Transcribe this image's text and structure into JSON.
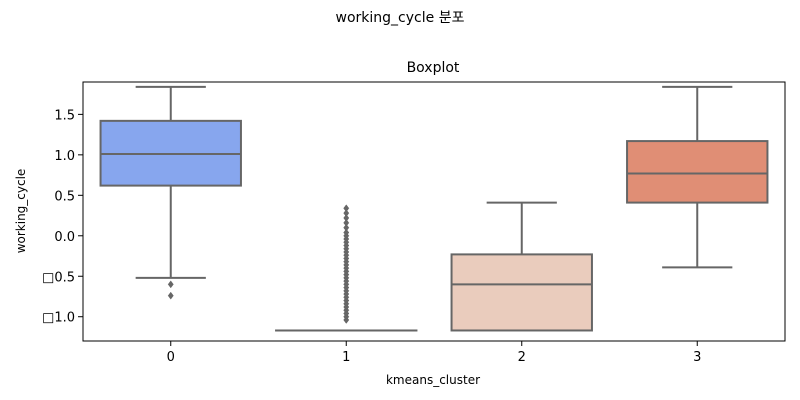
{
  "figure": {
    "suptitle": "working_cycle 분포"
  },
  "chart_data": {
    "type": "boxplot",
    "title": "Boxplot",
    "xlabel": "kmeans_cluster",
    "ylabel": "working_cycle",
    "categories": [
      "0",
      "1",
      "2",
      "3"
    ],
    "ylim": [
      -1.3,
      1.9
    ],
    "yticks": [
      {
        "value": 1.5,
        "label": "1.5"
      },
      {
        "value": 1.0,
        "label": "1.0"
      },
      {
        "value": 0.5,
        "label": "0.5"
      },
      {
        "value": 0.0,
        "label": "0.0"
      },
      {
        "value": -0.5,
        "label": "□0.5"
      },
      {
        "value": -1.0,
        "label": "□1.0"
      }
    ],
    "grid": false,
    "boxes": [
      {
        "category": "0",
        "color": "#87a6ee",
        "whisker_low": -0.52,
        "q1": 0.62,
        "median": 1.01,
        "q3": 1.42,
        "whisker_high": 1.84,
        "outliers": [
          -0.6,
          -0.74
        ]
      },
      {
        "category": "1",
        "color": "#b3cdfc",
        "whisker_low": -1.17,
        "q1": -1.17,
        "median": -1.17,
        "q3": -1.17,
        "whisker_high": -1.17,
        "outliers": [
          -1.04,
          -1.0,
          -0.96,
          -0.92,
          -0.88,
          -0.84,
          -0.8,
          -0.76,
          -0.72,
          -0.68,
          -0.64,
          -0.6,
          -0.56,
          -0.52,
          -0.48,
          -0.44,
          -0.4,
          -0.36,
          -0.32,
          -0.28,
          -0.24,
          -0.2,
          -0.16,
          -0.12,
          -0.08,
          -0.04,
          0.0,
          0.04,
          0.1,
          0.16,
          0.22,
          0.28,
          0.34
        ]
      },
      {
        "category": "2",
        "color": "#eaccbd",
        "whisker_low": -1.17,
        "q1": -1.17,
        "median": -0.6,
        "q3": -0.23,
        "whisker_high": 0.41,
        "outliers": []
      },
      {
        "category": "3",
        "color": "#e08e75",
        "whisker_low": -0.39,
        "q1": 0.41,
        "median": 0.77,
        "q3": 1.17,
        "whisker_high": 1.84,
        "outliers": []
      }
    ],
    "line_color": "#666666"
  }
}
